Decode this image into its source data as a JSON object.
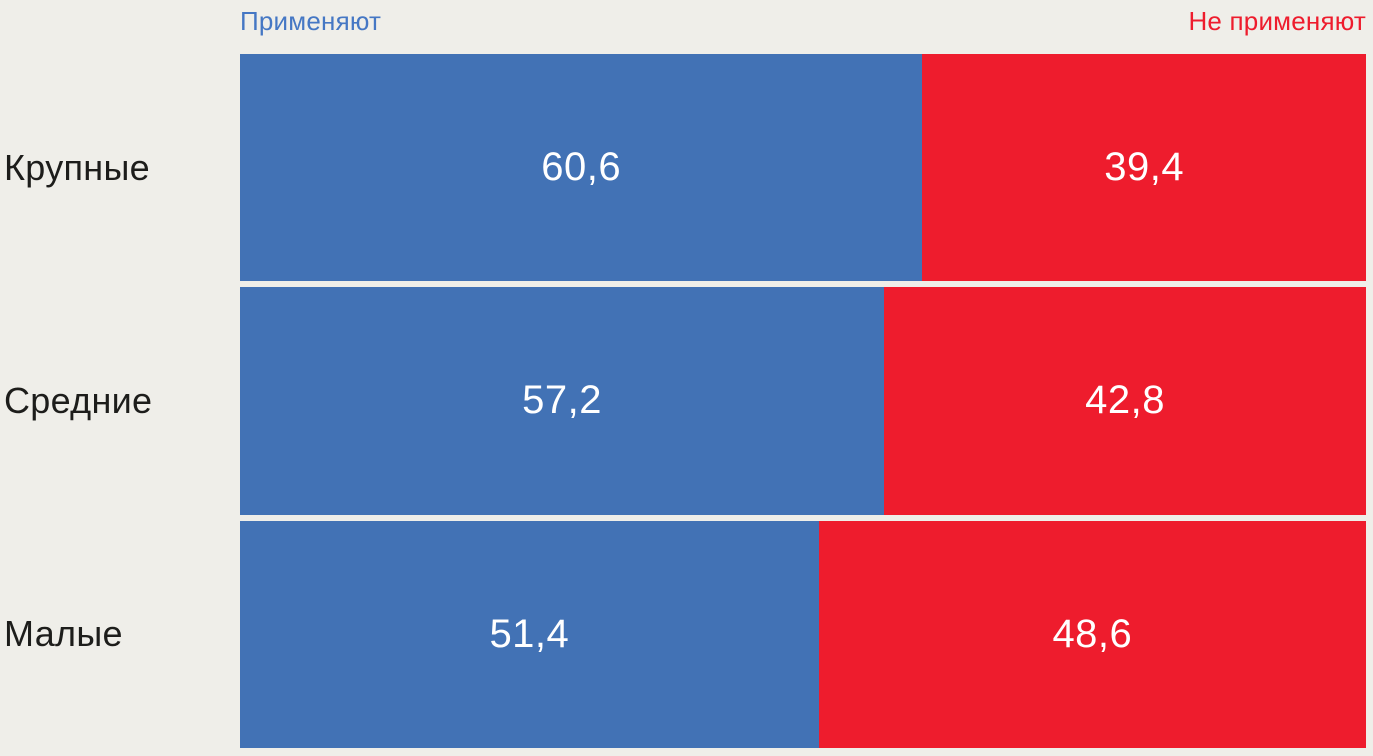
{
  "legend": {
    "apply_label": "Применяют",
    "not_apply_label": "Не применяют"
  },
  "colors": {
    "apply": "#4272b5",
    "not_apply": "#ee1c2d",
    "background": "#efeee9",
    "category_text": "#1d1d1b",
    "value_text": "#ffffff",
    "legend_apply_text": "#4577c4",
    "legend_not_apply_text": "#ee1c2d"
  },
  "chart_data": {
    "type": "bar",
    "subtype": "horizontal-100%-stacked",
    "title": "",
    "xlabel": "",
    "ylabel": "",
    "xlim": [
      0,
      100
    ],
    "grid": false,
    "legend_position": "top",
    "categories": [
      "Крупные",
      "Средние",
      "Малые"
    ],
    "series": [
      {
        "name": "Применяют",
        "color": "#4272b5",
        "values": [
          60.6,
          57.2,
          51.4
        ]
      },
      {
        "name": "Не применяют",
        "color": "#ee1c2d",
        "values": [
          39.4,
          42.8,
          48.6
        ]
      }
    ],
    "value_labels": [
      [
        "60,6",
        "39,4"
      ],
      [
        "57,2",
        "42,8"
      ],
      [
        "51,4",
        "48,6"
      ]
    ]
  }
}
